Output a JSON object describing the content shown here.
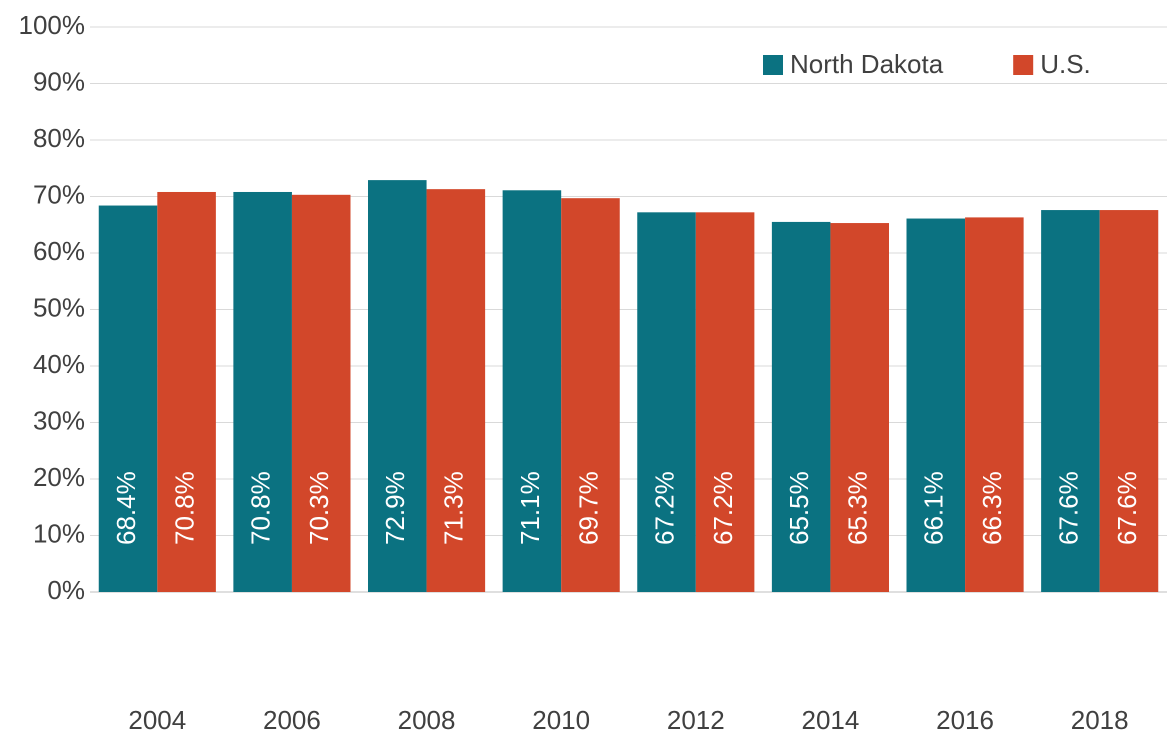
{
  "chart_data": {
    "type": "bar",
    "categories": [
      "2004",
      "2006",
      "2008",
      "2010",
      "2012",
      "2014",
      "2016",
      "2018"
    ],
    "series": [
      {
        "name": "North Dakota",
        "color": "#0b7281",
        "values": [
          68.4,
          70.8,
          72.9,
          71.1,
          67.2,
          65.5,
          66.1,
          67.6
        ],
        "value_labels": [
          "68.4%",
          "70.8%",
          "72.9%",
          "71.1%",
          "67.2%",
          "65.5%",
          "66.1%",
          "67.6%"
        ]
      },
      {
        "name": "U.S.",
        "color": "#d2472a",
        "values": [
          70.8,
          70.3,
          71.3,
          69.7,
          67.2,
          65.3,
          66.3,
          67.6
        ],
        "value_labels": [
          "70.8%",
          "70.3%",
          "71.3%",
          "69.7%",
          "67.2%",
          "65.3%",
          "66.3%",
          "67.6%"
        ]
      }
    ],
    "ylim": [
      0,
      100
    ],
    "yticks": [
      {
        "value": 0,
        "label": "0%"
      },
      {
        "value": 10,
        "label": "10%"
      },
      {
        "value": 20,
        "label": "20%"
      },
      {
        "value": 30,
        "label": "30%"
      },
      {
        "value": 40,
        "label": "40%"
      },
      {
        "value": 50,
        "label": "50%"
      },
      {
        "value": 60,
        "label": "60%"
      },
      {
        "value": 70,
        "label": "70%"
      },
      {
        "value": 80,
        "label": "80%"
      },
      {
        "value": 90,
        "label": "90%"
      },
      {
        "value": 100,
        "label": "100%"
      }
    ],
    "grid": true,
    "legend": "top-right"
  }
}
